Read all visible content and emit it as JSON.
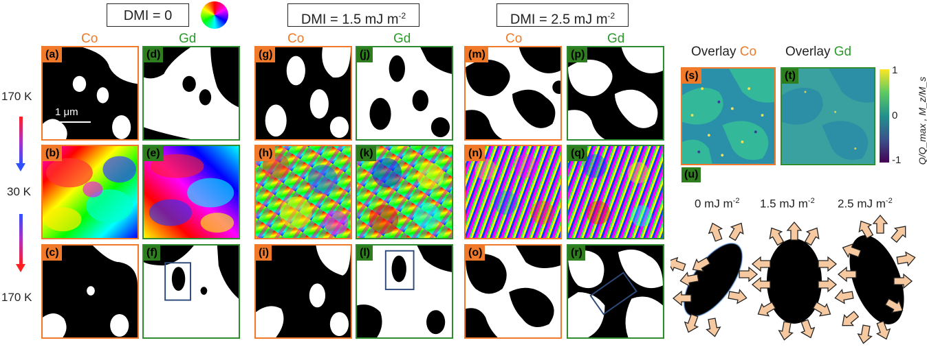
{
  "headers": {
    "h1": "DMI = 0",
    "h2_main": "DMI = 1.5 mJ m",
    "h2_sup": "-2",
    "h3_main": "DMI = 2.5 mJ m",
    "h3_sup": "-2"
  },
  "columns": {
    "co": "Co",
    "gd": "Gd"
  },
  "panel_labels": [
    "(a)",
    "(b)",
    "(c)",
    "(d)",
    "(e)",
    "(f)",
    "(g)",
    "(h)",
    "(i)",
    "(j)",
    "(k)",
    "(l)",
    "(m)",
    "(n)",
    "(o)",
    "(p)",
    "(q)",
    "(r)",
    "(s)",
    "(t)",
    "(u)"
  ],
  "temperatures": {
    "top": "170 K",
    "mid": "30 K",
    "bottom": "170 K"
  },
  "scalebar": "1 μm",
  "overlay": {
    "prefix": "Overlay",
    "co": "Co",
    "gd": "Gd"
  },
  "colorbar": {
    "ticks": [
      "1",
      "0",
      "-1"
    ],
    "label": "Q/Q_max , M_z/M_s"
  },
  "dmi_labels": [
    {
      "main": "0 mJ m",
      "sup": "-2"
    },
    {
      "main": "1.5 mJ m",
      "sup": "-2"
    },
    {
      "main": "2.5 mJ m",
      "sup": "-2"
    }
  ],
  "colors": {
    "co": "#f07a2a",
    "gd": "#2e8b2e",
    "rainbow": [
      "#ff0000",
      "#ffff00",
      "#00ff00",
      "#00ffff",
      "#0000ff",
      "#ff00ff"
    ]
  }
}
